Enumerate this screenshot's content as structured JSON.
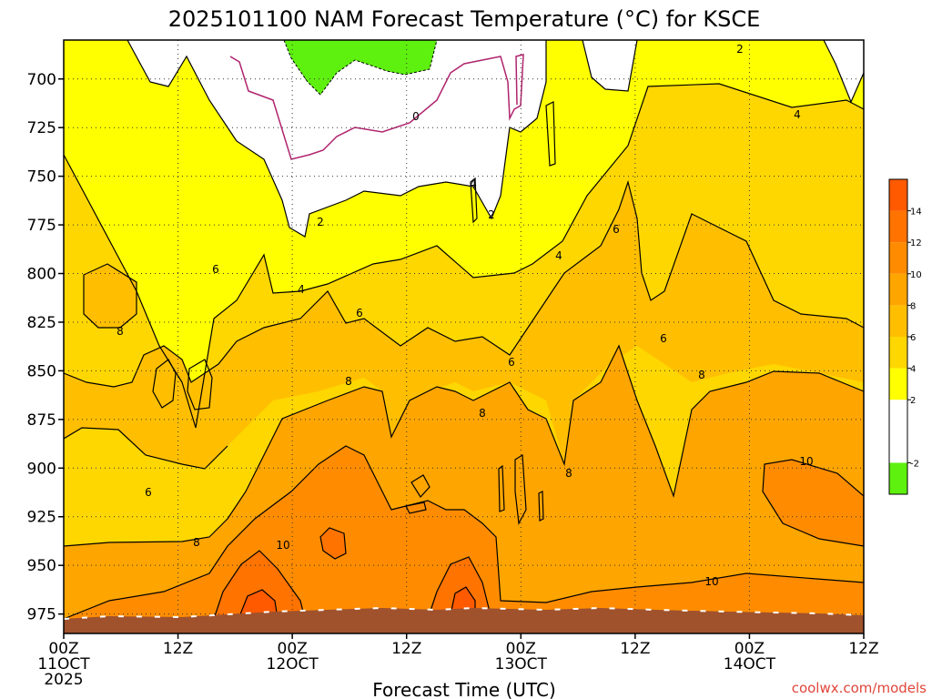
{
  "chart_data": {
    "type": "contour",
    "title": "2025101100 NAM Forecast Temperature (°C) for KSCE",
    "xlabel": "Forecast Time (UTC)",
    "ylabel": "",
    "credit": "coolwx.com/models",
    "x_ticks": [
      {
        "hours": 0,
        "labels": [
          "00Z",
          "11OCT",
          "2025"
        ]
      },
      {
        "hours": 12,
        "labels": [
          "12Z"
        ]
      },
      {
        "hours": 24,
        "labels": [
          "00Z",
          "12OCT"
        ]
      },
      {
        "hours": 36,
        "labels": [
          "12Z"
        ]
      },
      {
        "hours": 48,
        "labels": [
          "00Z",
          "13OCT"
        ]
      },
      {
        "hours": 60,
        "labels": [
          "12Z"
        ]
      },
      {
        "hours": 72,
        "labels": [
          "00Z",
          "14OCT"
        ]
      },
      {
        "hours": 84,
        "labels": [
          "12Z"
        ]
      }
    ],
    "x_range_hours": [
      0,
      84
    ],
    "y_ticks": [
      "700",
      "725",
      "750",
      "775",
      "800",
      "825",
      "850",
      "875",
      "900",
      "925",
      "950",
      "975"
    ],
    "y_values": [
      700,
      725,
      750,
      775,
      800,
      825,
      850,
      875,
      900,
      925,
      950,
      975
    ],
    "y_range_hPa": [
      680,
      985
    ],
    "y_inverted": true,
    "grid": true,
    "colorbar": {
      "levels": [
        -2,
        2,
        4,
        6,
        8,
        10,
        12,
        14
      ],
      "labels": [
        "-2",
        "2",
        "4",
        "6",
        "8",
        "10",
        "12",
        "14"
      ],
      "bands": [
        {
          "from": -4,
          "to": -2,
          "color": "#5ef00f"
        },
        {
          "from": -2,
          "to": 2,
          "color": "#ffffff"
        },
        {
          "from": 2,
          "to": 4,
          "color": "#ffff00"
        },
        {
          "from": 4,
          "to": 6,
          "color": "#ffd700"
        },
        {
          "from": 6,
          "to": 8,
          "color": "#ffbf00"
        },
        {
          "from": 8,
          "to": 10,
          "color": "#ffa500"
        },
        {
          "from": 10,
          "to": 12,
          "color": "#ff8c00"
        },
        {
          "from": 12,
          "to": 14,
          "color": "#ff7300"
        },
        {
          "from": 14,
          "to": 16,
          "color": "#ff5a00"
        }
      ]
    },
    "terrain_color": "#a0522d",
    "zero_contour_color": "#b0246e",
    "contour_labels": [
      "0",
      "2",
      "2",
      "2",
      "4",
      "4",
      "4",
      "4",
      "6",
      "6",
      "6",
      "6",
      "6",
      "6",
      "8",
      "8",
      "8",
      "8",
      "8",
      "8",
      "10",
      "10",
      "10"
    ]
  }
}
